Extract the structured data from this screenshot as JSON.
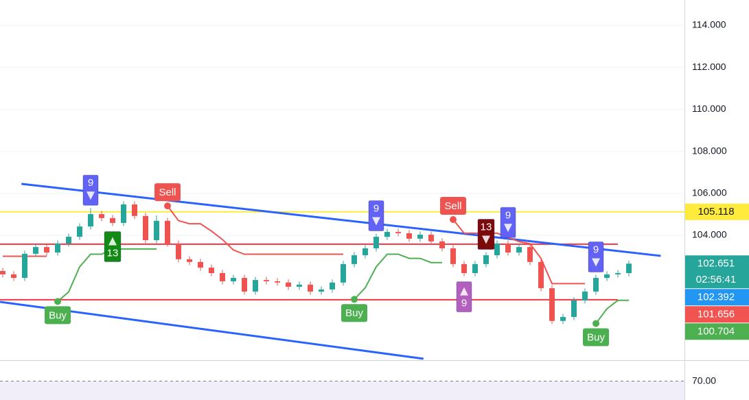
{
  "chart_data": {
    "type": "candlestick",
    "xlim": [
      -0.25,
      62.06
    ],
    "ylim": [
      98.05,
      115.21
    ],
    "yticks": [
      {
        "value": 104,
        "label": "104.000"
      },
      {
        "value": 106,
        "label": "106.000"
      },
      {
        "value": 108,
        "label": "108.000"
      },
      {
        "value": 110,
        "label": "110.000"
      },
      {
        "value": 112,
        "label": "112.000"
      },
      {
        "value": 114,
        "label": "114.000"
      }
    ],
    "grid": true,
    "up_color": "#26a69a",
    "down_color": "#ef5350",
    "ohlc": [
      [
        102.3,
        102.45,
        101.99,
        102.14
      ],
      [
        102.14,
        102.29,
        101.82,
        101.97
      ],
      [
        101.97,
        103.27,
        101.82,
        103.12
      ],
      [
        103.12,
        103.59,
        102.97,
        103.44
      ],
      [
        103.44,
        103.59,
        103.03,
        103.18
      ],
      [
        103.18,
        103.76,
        103.03,
        103.61
      ],
      [
        103.61,
        104.08,
        103.46,
        103.93
      ],
      [
        103.93,
        104.57,
        103.78,
        104.42
      ],
      [
        104.42,
        105.3,
        104.27,
        105.01
      ],
      [
        105.01,
        105.16,
        104.67,
        104.82
      ],
      [
        104.82,
        104.97,
        104.44,
        104.59
      ],
      [
        104.59,
        105.62,
        104.44,
        105.47
      ],
      [
        105.47,
        105.62,
        104.77,
        104.92
      ],
      [
        104.92,
        105.07,
        103.62,
        103.77
      ],
      [
        103.77,
        104.95,
        103.62,
        104.69
      ],
      [
        104.69,
        104.84,
        103.46,
        103.61
      ],
      [
        103.61,
        103.76,
        102.71,
        102.86
      ],
      [
        102.86,
        103.01,
        102.58,
        102.73
      ],
      [
        102.73,
        102.88,
        102.31,
        102.46
      ],
      [
        102.46,
        102.61,
        102.05,
        102.2
      ],
      [
        102.2,
        102.35,
        101.66,
        101.81
      ],
      [
        101.81,
        102.12,
        101.66,
        101.97
      ],
      [
        101.97,
        102.12,
        101.17,
        101.32
      ],
      [
        101.32,
        102.02,
        101.17,
        101.87
      ],
      [
        101.87,
        102.02,
        101.66,
        101.81
      ],
      [
        101.81,
        101.96,
        101.6,
        101.75
      ],
      [
        101.75,
        101.9,
        101.4,
        101.55
      ],
      [
        101.55,
        101.8,
        101.4,
        101.65
      ],
      [
        101.65,
        101.8,
        101.17,
        101.32
      ],
      [
        101.32,
        101.57,
        101.17,
        101.42
      ],
      [
        101.42,
        101.9,
        101.27,
        101.75
      ],
      [
        101.75,
        102.78,
        101.6,
        102.63
      ],
      [
        102.63,
        103.2,
        102.48,
        103.05
      ],
      [
        103.05,
        103.53,
        102.9,
        103.38
      ],
      [
        103.38,
        104.08,
        103.23,
        103.93
      ],
      [
        103.93,
        104.31,
        103.78,
        104.16
      ],
      [
        104.16,
        104.31,
        103.95,
        104.1
      ],
      [
        104.1,
        104.25,
        103.69,
        103.84
      ],
      [
        103.84,
        104.18,
        103.69,
        104.03
      ],
      [
        104.03,
        104.18,
        103.56,
        103.71
      ],
      [
        103.71,
        103.86,
        103.23,
        103.38
      ],
      [
        103.38,
        103.53,
        102.48,
        102.63
      ],
      [
        102.63,
        102.78,
        102.05,
        102.2
      ],
      [
        102.2,
        102.78,
        102.05,
        102.63
      ],
      [
        102.63,
        103.2,
        102.48,
        103.05
      ],
      [
        103.05,
        103.76,
        102.9,
        103.61
      ],
      [
        103.61,
        103.76,
        103.03,
        103.18
      ],
      [
        103.18,
        103.59,
        103.03,
        103.44
      ],
      [
        103.44,
        103.59,
        102.58,
        102.73
      ],
      [
        102.73,
        102.88,
        101.33,
        101.48
      ],
      [
        101.48,
        101.63,
        99.77,
        99.92
      ],
      [
        99.92,
        100.26,
        99.77,
        100.11
      ],
      [
        100.11,
        101.05,
        99.96,
        100.9
      ],
      [
        100.9,
        101.47,
        100.75,
        101.32
      ],
      [
        101.32,
        102.12,
        101.17,
        101.97
      ],
      [
        101.97,
        102.29,
        101.82,
        102.14
      ],
      [
        102.14,
        102.35,
        101.99,
        102.2
      ],
      [
        102.2,
        102.8,
        102.05,
        102.651
      ]
    ],
    "trails": [
      {
        "color": "#ef5350",
        "values": [
          103.0,
          103.0,
          103.0,
          103.0,
          103.0,
          null,
          null,
          null,
          null,
          null,
          null,
          null,
          null,
          null,
          null,
          105.4,
          104.7,
          104.55,
          104.55,
          104.2,
          103.8,
          103.3,
          103.1,
          103.1,
          103.1,
          103.1,
          103.1,
          103.1,
          103.1,
          103.1,
          103.1,
          103.1,
          null,
          null,
          null,
          null,
          null,
          null,
          null,
          null,
          null,
          104.75,
          104.1,
          104.1,
          104.1,
          104.1,
          103.9,
          103.7,
          103.6,
          102.9,
          101.7,
          101.7,
          101.7,
          101.7,
          null,
          null,
          null,
          null
        ]
      },
      {
        "color": "#4caf50",
        "values": [
          null,
          null,
          null,
          null,
          null,
          100.85,
          101.3,
          102.5,
          103.1,
          103.1,
          103.35,
          103.35,
          103.35,
          103.35,
          103.35,
          null,
          null,
          null,
          null,
          null,
          null,
          null,
          null,
          null,
          null,
          null,
          null,
          null,
          null,
          null,
          null,
          null,
          100.95,
          101.5,
          102.5,
          103.1,
          103.1,
          102.9,
          102.9,
          102.7,
          102.7,
          null,
          null,
          null,
          null,
          null,
          null,
          null,
          null,
          null,
          null,
          null,
          null,
          null,
          99.8,
          100.5,
          100.9,
          100.9
        ]
      }
    ],
    "hlines": [
      {
        "value": 105.118,
        "color": "#ffeb3b",
        "x": [
          -0.25,
          62.06
        ]
      },
      {
        "value": 103.58,
        "color": "#f23645",
        "x": [
          -0.25,
          56
        ]
      },
      {
        "value": 100.93,
        "color": "#f23645",
        "x": [
          -0.25,
          56
        ]
      }
    ],
    "trendlines": [
      {
        "color": "#2962ff",
        "x": [
          1.7,
          59.9
        ],
        "y": [
          106.45,
          103.02
        ]
      },
      {
        "color": "#2962ff",
        "x": [
          -0.25,
          38.3
        ],
        "y": [
          100.83,
          98.12
        ]
      }
    ],
    "annotations": [
      {
        "kind": "td",
        "text": "9",
        "candle": 8,
        "pos": "above",
        "color": "#6262f7"
      },
      {
        "kind": "td",
        "text": "13",
        "candle": 10,
        "pos": "below",
        "color": "#138a13"
      },
      {
        "kind": "td",
        "text": "9",
        "candle": 34,
        "pos": "above",
        "color": "#6262f7"
      },
      {
        "kind": "td",
        "text": "9",
        "candle": 42,
        "pos": "below",
        "color": "#b25fbd"
      },
      {
        "kind": "td",
        "text": "13",
        "candle": 44,
        "pos": "above",
        "color": "#7b0a0a"
      },
      {
        "kind": "td",
        "text": "9",
        "candle": 46,
        "pos": "above",
        "color": "#6262f7"
      },
      {
        "kind": "td",
        "text": "9",
        "candle": 54,
        "pos": "above",
        "color": "#6262f7"
      },
      {
        "kind": "signal",
        "text": "Buy",
        "candle": 5,
        "pos": "below",
        "color": "#4caf50"
      },
      {
        "kind": "signal",
        "text": "Sell",
        "candle": 15,
        "pos": "above",
        "color": "#ef5350"
      },
      {
        "kind": "signal",
        "text": "Buy",
        "candle": 32,
        "pos": "below",
        "color": "#4caf50"
      },
      {
        "kind": "signal",
        "text": "Sell",
        "candle": 41,
        "pos": "above",
        "color": "#ef5350"
      },
      {
        "kind": "signal",
        "text": "Buy",
        "candle": 54,
        "pos": "below",
        "color": "#4caf50"
      }
    ],
    "price_labels": [
      {
        "value": 105.118,
        "color": "#ffeb3b",
        "text_color": "#131722"
      },
      {
        "value": 102.651,
        "color": "#26a69a",
        "text_color": "#ffffff",
        "countdown": "02:56:41"
      },
      {
        "value": 102.392,
        "color": "#2196f3",
        "text_color": "#ffffff"
      },
      {
        "value": 101.656,
        "color": "#f05350",
        "text_color": "#ffffff"
      },
      {
        "value": 100.704,
        "color": "#4caf50",
        "text_color": "#ffffff"
      }
    ],
    "rsi": {
      "ylim": [
        63.5,
        77
      ],
      "yticks": [
        {
          "value": 70,
          "label": "70.00"
        }
      ],
      "band_color": "#7e57c2"
    }
  }
}
